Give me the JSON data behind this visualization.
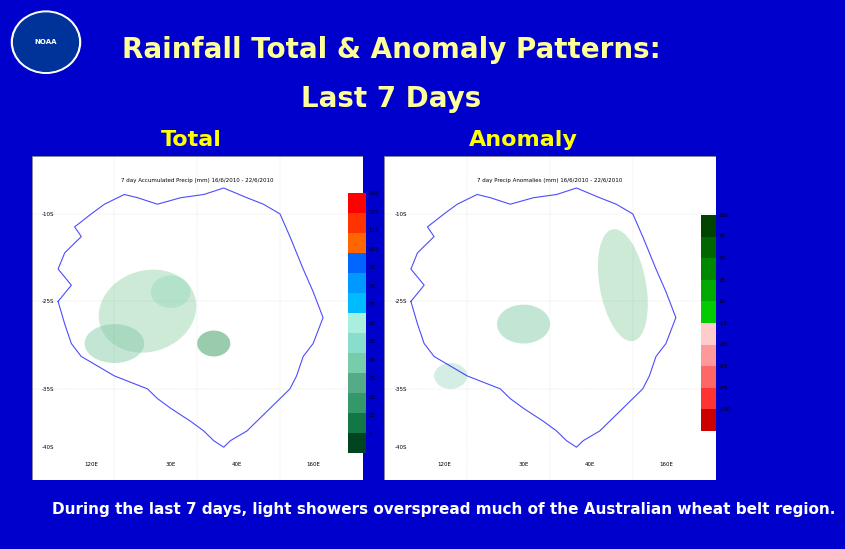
{
  "title_line1": "Rainfall Total & Anomaly Patterns:",
  "title_line2": "Last 7 Days",
  "title_color": "#FFFF99",
  "background_color": "#0000CC",
  "label_total": "Total",
  "label_anomaly": "Anomaly",
  "label_color": "#FFFF00",
  "caption": "During the last 7 days, light showers overspread much of the Australian wheat belt region.",
  "caption_color": "#FFFFFF",
  "panel_bg": "#FFFFFF",
  "map_bg": "#FFFFFF",
  "title_fontsize": 20,
  "label_fontsize": 16,
  "caption_fontsize": 11,
  "noaa_logo_color": "#AAAAFF",
  "colorbar_total_colors": [
    "#FF0000",
    "#FF4400",
    "#FF6600",
    "#0088FF",
    "#00AAFF",
    "#00CCFF",
    "#00EEFF",
    "#AAFFCC",
    "#88DDAA",
    "#66BB88",
    "#44AA66",
    "#228844",
    "#005522"
  ],
  "colorbar_total_labels": [
    "135",
    "125",
    "115",
    "107",
    "95",
    "85",
    "75",
    "65",
    "55",
    "45",
    "35",
    "25",
    "15",
    "5"
  ],
  "colorbar_anomaly_colors": [
    "#006600",
    "#008800",
    "#00AA00",
    "#00CC00",
    "#00EE00",
    "#FFCCCC",
    "#FF9999",
    "#FF6666",
    "#FF3333",
    "#FF0000"
  ],
  "colorbar_anomaly_labels": [
    "100",
    "75",
    "50",
    "25",
    "15",
    "-15",
    "-25",
    "-50",
    "-75",
    "-100"
  ]
}
